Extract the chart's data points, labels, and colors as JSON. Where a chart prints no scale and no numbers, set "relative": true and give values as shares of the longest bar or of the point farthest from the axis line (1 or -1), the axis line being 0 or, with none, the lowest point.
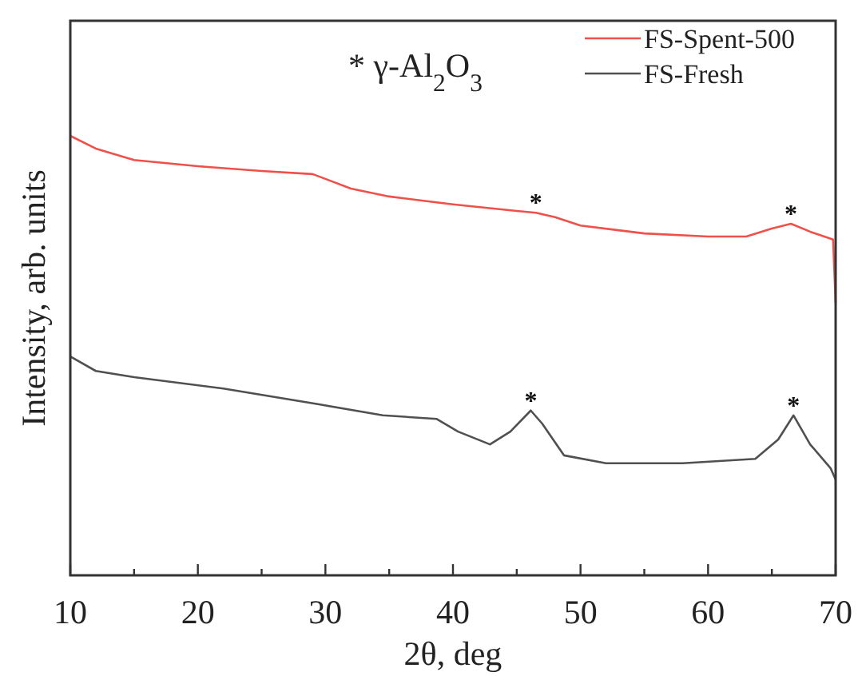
{
  "chart_data": {
    "type": "line",
    "xlabel": "2θ, deg",
    "ylabel": "Intensity, arb. units",
    "relative": true,
    "xlim": [
      10,
      70
    ],
    "xticks": [
      10,
      {
        "value": 15,
        "label": null
      },
      20,
      {
        "value": 25,
        "label": null
      },
      30,
      {
        "value": 35,
        "label": null
      },
      40,
      {
        "value": 45,
        "label": null
      },
      50,
      {
        "value": 55,
        "label": null
      },
      60,
      {
        "value": 65,
        "label": null
      },
      70
    ],
    "tick_labels": "x",
    "legend": "top right",
    "grid": false,
    "series": [
      {
        "name": "FS-Spent-500",
        "color": "#f0504a",
        "x": [
          10,
          12,
          15,
          20,
          25,
          29,
          30,
          32,
          35,
          40,
          45,
          46.5,
          48,
          50,
          55,
          60,
          63,
          65,
          66.5,
          68,
          69.8,
          70
        ],
        "values": [
          1.0,
          0.971,
          0.945,
          0.931,
          0.92,
          0.913,
          0.902,
          0.88,
          0.862,
          0.844,
          0.829,
          0.825,
          0.815,
          0.796,
          0.778,
          0.771,
          0.771,
          0.789,
          0.8,
          0.782,
          0.764,
          0.62
        ]
      },
      {
        "name": "FS-Fresh",
        "color": "#505050",
        "x": [
          10,
          12,
          15,
          22,
          29.5,
          34.5,
          38.7,
          40.4,
          42.9,
          44.5,
          46.1,
          47,
          48.7,
          52,
          58,
          63.7,
          65.5,
          66.7,
          68,
          69.6,
          70
        ],
        "values": [
          0.498,
          0.465,
          0.451,
          0.425,
          0.389,
          0.364,
          0.356,
          0.327,
          0.298,
          0.327,
          0.375,
          0.345,
          0.273,
          0.255,
          0.255,
          0.265,
          0.309,
          0.364,
          0.298,
          0.244,
          0.218
        ]
      }
    ],
    "annotations": [
      "* γ-Al$_{2}$O$_{3}$",
      {
        "text": "*",
        "x": 46.5,
        "y": 0.825
      },
      {
        "text": "*",
        "x": 66.5,
        "y": 0.8
      },
      {
        "text": "*",
        "x": 46.1,
        "y": 0.375
      },
      {
        "text": "*",
        "x": 66.7,
        "y": 0.364
      }
    ]
  }
}
